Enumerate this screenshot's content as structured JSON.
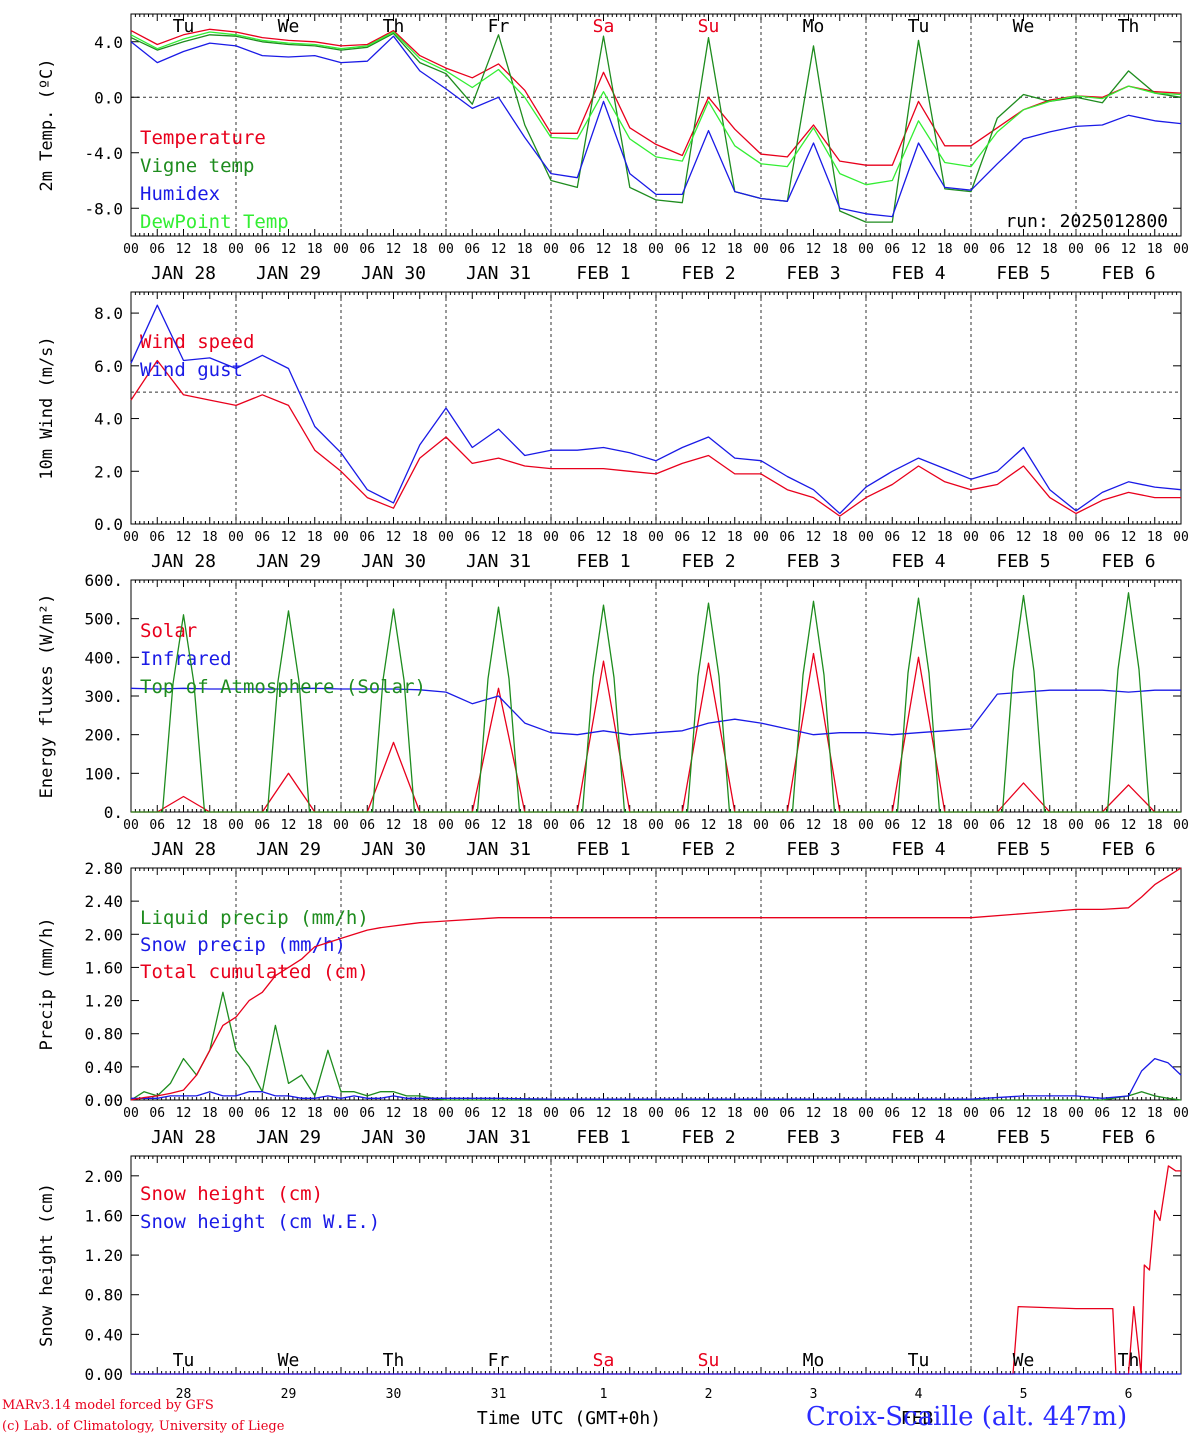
{
  "run_label": "run: 2025012800",
  "day_names": [
    "Tu",
    "We",
    "Th",
    "Fr",
    "Sa",
    "Su",
    "Mo",
    "Tu",
    "We",
    "Th"
  ],
  "weekend_color": "#e8001c",
  "weekend_days": [
    "Sa",
    "Su"
  ],
  "date_labels": [
    "JAN 28",
    "JAN 29",
    "JAN 30",
    "JAN 31",
    "FEB  1",
    "FEB  2",
    "FEB  3",
    "FEB  4",
    "FEB  5",
    "FEB  6"
  ],
  "day_numbers": [
    "28",
    "29",
    "30",
    "31",
    "1",
    "2",
    "3",
    "4",
    "5",
    "6"
  ],
  "hour_labels": [
    "00",
    "06",
    "12",
    "18"
  ],
  "last_tick_label": "00",
  "x_label": "Time UTC (GMT+0h)",
  "x_month_label": "FEB",
  "footer": {
    "credit_line1": "MARv3.14 model forced by GFS",
    "credit_line2": "(c) Lab. of Climatology, University of Liege",
    "station": "Croix-Scaille (alt. 447m)"
  },
  "chart_data": [
    {
      "id": "temp",
      "type": "line",
      "ylabel": "2m Temp. (ºC)",
      "ylim": [
        -10.0,
        6.0
      ],
      "yticks": [
        -8,
        -4,
        0,
        4
      ],
      "ytick_labels": [
        "-8.0",
        "-4.0",
        "0.0",
        "4.0"
      ],
      "ref_line": 0.0,
      "x_days": [
        0,
        0.25,
        0.5,
        0.75,
        1,
        1.25,
        1.5,
        1.75,
        2,
        2.25,
        2.5,
        2.75,
        3,
        3.25,
        3.5,
        3.75,
        4,
        4.25,
        4.5,
        4.75,
        5,
        5.25,
        5.5,
        5.75,
        6,
        6.25,
        6.5,
        6.75,
        7,
        7.25,
        7.5,
        7.75,
        8,
        8.25,
        8.5,
        8.75,
        9,
        9.25,
        9.5,
        9.75,
        10
      ],
      "series": [
        {
          "name": "Temperature",
          "color": "#e8001c",
          "values": [
            4.8,
            3.8,
            4.5,
            4.9,
            4.7,
            4.3,
            4.1,
            4.0,
            3.7,
            3.8,
            4.8,
            3.0,
            2.1,
            1.4,
            2.4,
            0.5,
            -2.6,
            -2.6,
            1.8,
            -2.2,
            -3.4,
            -4.2,
            0.0,
            -2.3,
            -4.1,
            -4.3,
            -2.0,
            -4.6,
            -4.9,
            -4.9,
            -0.3,
            -3.5,
            -3.5,
            -2.2,
            -0.9,
            -0.2,
            0.1,
            0.0,
            0.8,
            0.4,
            0.3
          ]
        },
        {
          "name": "Vigne temp",
          "color": "#1e8c1e",
          "values": [
            4.3,
            3.4,
            4.0,
            4.5,
            4.4,
            4.0,
            3.8,
            3.7,
            3.4,
            3.6,
            4.6,
            2.5,
            1.7,
            -0.5,
            4.5,
            -2.0,
            -6.0,
            -6.5,
            4.4,
            -6.5,
            -7.4,
            -7.6,
            4.3,
            -6.8,
            -7.3,
            -7.5,
            3.7,
            -8.2,
            -9.0,
            -9.0,
            4.1,
            -6.6,
            -6.8,
            -1.5,
            0.2,
            -0.3,
            0.0,
            -0.4,
            1.9,
            0.3,
            0.0
          ]
        },
        {
          "name": "Humidex",
          "color": "#1a1ae6",
          "values": [
            4.0,
            2.5,
            3.3,
            3.9,
            3.7,
            3.0,
            2.9,
            3.0,
            2.5,
            2.6,
            4.4,
            1.9,
            0.6,
            -0.8,
            0.0,
            -2.9,
            -5.5,
            -5.8,
            -0.3,
            -5.5,
            -7.0,
            -7.0,
            -2.4,
            -6.8,
            -7.3,
            -7.5,
            -3.3,
            -8.0,
            -8.4,
            -8.6,
            -3.3,
            -6.5,
            -6.7,
            -4.8,
            -3.0,
            -2.5,
            -2.1,
            -2.0,
            -1.3,
            -1.7,
            -1.9
          ]
        },
        {
          "name": "DewPoint Temp",
          "color": "#33ee33",
          "values": [
            4.5,
            3.5,
            4.2,
            4.7,
            4.5,
            4.1,
            3.9,
            3.8,
            3.5,
            3.7,
            4.7,
            2.8,
            1.9,
            0.7,
            2.0,
            0.0,
            -2.9,
            -3.0,
            0.4,
            -3.0,
            -4.3,
            -4.6,
            -0.3,
            -3.5,
            -4.8,
            -5.0,
            -2.2,
            -5.5,
            -6.3,
            -6.0,
            -1.7,
            -4.7,
            -5.0,
            -2.5,
            -0.9,
            -0.3,
            0.1,
            -0.1,
            0.8,
            0.3,
            0.2
          ]
        }
      ]
    },
    {
      "id": "wind",
      "type": "line",
      "ylabel": "10m Wind (m/s)",
      "ylim": [
        0.0,
        8.8
      ],
      "yticks": [
        0,
        2,
        4,
        6,
        8
      ],
      "ytick_labels": [
        "0.0",
        "2.0",
        "4.0",
        "6.0",
        "8.0"
      ],
      "ref_line": 5.0,
      "x_days": [
        0,
        0.25,
        0.5,
        0.75,
        1,
        1.25,
        1.5,
        1.75,
        2,
        2.25,
        2.5,
        2.75,
        3,
        3.25,
        3.5,
        3.75,
        4,
        4.25,
        4.5,
        4.75,
        5,
        5.25,
        5.5,
        5.75,
        6,
        6.25,
        6.5,
        6.75,
        7,
        7.25,
        7.5,
        7.75,
        8,
        8.25,
        8.5,
        8.75,
        9,
        9.25,
        9.5,
        9.75,
        10
      ],
      "series": [
        {
          "name": "Wind speed",
          "color": "#e8001c",
          "values": [
            4.7,
            6.2,
            4.9,
            4.7,
            4.5,
            4.9,
            4.5,
            2.8,
            2.0,
            1.0,
            0.6,
            2.5,
            3.3,
            2.3,
            2.5,
            2.2,
            2.1,
            2.1,
            2.1,
            2.0,
            1.9,
            2.3,
            2.6,
            1.9,
            1.9,
            1.3,
            1.0,
            0.3,
            1.0,
            1.5,
            2.2,
            1.6,
            1.3,
            1.5,
            2.2,
            1.0,
            0.4,
            0.9,
            1.2,
            1.0,
            1.0
          ]
        },
        {
          "name": "Wind gust",
          "color": "#1a1ae6",
          "values": [
            6.1,
            8.3,
            6.2,
            6.3,
            5.9,
            6.4,
            5.9,
            3.7,
            2.7,
            1.3,
            0.8,
            3.0,
            4.4,
            2.9,
            3.6,
            2.6,
            2.8,
            2.8,
            2.9,
            2.7,
            2.4,
            2.9,
            3.3,
            2.5,
            2.4,
            1.8,
            1.3,
            0.4,
            1.4,
            2.0,
            2.5,
            2.1,
            1.7,
            2.0,
            2.9,
            1.3,
            0.5,
            1.2,
            1.6,
            1.4,
            1.3
          ]
        }
      ]
    },
    {
      "id": "energy",
      "type": "line",
      "ylabel": "Energy fluxes (W/m²)",
      "ylim": [
        0,
        600
      ],
      "yticks": [
        0,
        100,
        200,
        300,
        400,
        500,
        600
      ],
      "ytick_labels": [
        "0.",
        "100.",
        "200.",
        "300.",
        "400.",
        "500.",
        "600."
      ],
      "x_days": [
        0,
        0.25,
        0.5,
        0.75,
        1,
        1.25,
        1.5,
        1.75,
        2,
        2.25,
        2.5,
        2.75,
        3,
        3.25,
        3.5,
        3.75,
        4,
        4.25,
        4.5,
        4.75,
        5,
        5.25,
        5.5,
        5.75,
        6,
        6.25,
        6.5,
        6.75,
        7,
        7.25,
        7.5,
        7.75,
        8,
        8.25,
        8.5,
        8.75,
        9,
        9.25,
        9.5,
        9.75,
        10
      ],
      "series": [
        {
          "name": "Solar",
          "color": "#e8001c",
          "values": [
            0,
            0,
            40,
            0,
            0,
            0,
            100,
            0,
            0,
            0,
            180,
            0,
            0,
            0,
            320,
            0,
            0,
            0,
            390,
            0,
            0,
            0,
            385,
            0,
            0,
            0,
            410,
            0,
            0,
            0,
            400,
            0,
            0,
            0,
            75,
            0,
            0,
            0,
            70,
            0,
            0
          ]
        },
        {
          "name": "Infrared",
          "color": "#1a1ae6",
          "values": [
            320,
            318,
            320,
            318,
            318,
            318,
            318,
            320,
            318,
            318,
            318,
            316,
            310,
            280,
            300,
            230,
            205,
            200,
            210,
            200,
            205,
            210,
            230,
            240,
            230,
            215,
            200,
            205,
            205,
            200,
            205,
            210,
            215,
            305,
            310,
            315,
            315,
            315,
            310,
            315,
            315
          ]
        },
        {
          "name": "Top of Atmosphere (Solar)",
          "color": "#1e8c1e",
          "solar_peaks": [
            510,
            520,
            525,
            530,
            535,
            540,
            545,
            553,
            560,
            567
          ]
        }
      ]
    },
    {
      "id": "precip",
      "type": "line",
      "ylabel": "Precip (mm/h)",
      "ylim": [
        0,
        2.8
      ],
      "yticks": [
        0,
        0.4,
        0.8,
        1.2,
        1.6,
        2.0,
        2.4,
        2.8
      ],
      "ytick_labels": [
        "0.00",
        "0.40",
        "0.80",
        "1.20",
        "1.60",
        "2.00",
        "2.40",
        "2.80"
      ],
      "x_days": [
        0,
        0.125,
        0.25,
        0.375,
        0.5,
        0.625,
        0.75,
        0.875,
        1,
        1.125,
        1.25,
        1.375,
        1.5,
        1.625,
        1.75,
        1.875,
        2,
        2.125,
        2.25,
        2.375,
        2.5,
        2.625,
        2.75,
        2.875,
        3,
        3.5,
        4,
        4.5,
        5,
        5.5,
        6,
        6.5,
        7,
        7.5,
        8,
        8.5,
        9,
        9.25,
        9.5,
        9.625,
        9.75,
        9.875,
        10
      ],
      "series": [
        {
          "name": "Liquid precip (mm/h)",
          "color": "#1e8c1e",
          "values": [
            0,
            0.1,
            0.05,
            0.2,
            0.5,
            0.3,
            0.6,
            1.3,
            0.6,
            0.4,
            0.1,
            0.9,
            0.2,
            0.3,
            0.05,
            0.6,
            0.1,
            0.1,
            0.05,
            0.1,
            0.1,
            0.05,
            0.05,
            0.02,
            0,
            0,
            0,
            0,
            0,
            0,
            0,
            0,
            0,
            0,
            0,
            0,
            0,
            0,
            0.05,
            0.1,
            0.05,
            0.02,
            0
          ]
        },
        {
          "name": "Snow precip (mm/h)",
          "color": "#1a1ae6",
          "values": [
            0.02,
            0.02,
            0.02,
            0.05,
            0.05,
            0.05,
            0.1,
            0.05,
            0.05,
            0.1,
            0.1,
            0.05,
            0.05,
            0.02,
            0.02,
            0.05,
            0.02,
            0.05,
            0.02,
            0.02,
            0.05,
            0.02,
            0.02,
            0.02,
            0.02,
            0.02,
            0.01,
            0.01,
            0.01,
            0.01,
            0.01,
            0.01,
            0.01,
            0.01,
            0.01,
            0.05,
            0.05,
            0.02,
            0.05,
            0.35,
            0.5,
            0.45,
            0.3
          ]
        },
        {
          "name": "Total cumulated (cm)",
          "color": "#e8001c",
          "values": [
            0,
            0.03,
            0.05,
            0.08,
            0.12,
            0.3,
            0.6,
            0.9,
            1.0,
            1.2,
            1.3,
            1.5,
            1.6,
            1.7,
            1.85,
            1.9,
            1.95,
            2.0,
            2.05,
            2.08,
            2.1,
            2.12,
            2.14,
            2.15,
            2.16,
            2.2,
            2.2,
            2.2,
            2.2,
            2.2,
            2.2,
            2.2,
            2.2,
            2.2,
            2.2,
            2.25,
            2.3,
            2.3,
            2.32,
            2.45,
            2.6,
            2.7,
            2.8
          ]
        }
      ]
    },
    {
      "id": "snow",
      "type": "line",
      "ylabel": "Snow height (cm)",
      "ylim": [
        0,
        2.2
      ],
      "yticks": [
        0,
        0.4,
        0.8,
        1.2,
        1.6,
        2.0
      ],
      "ytick_labels": [
        "0.00",
        "0.40",
        "0.80",
        "1.20",
        "1.60",
        "2.00"
      ],
      "x_days": [
        0,
        4,
        8,
        8.4,
        8.45,
        9,
        9.35,
        9.38,
        9.5,
        9.55,
        9.62,
        9.65,
        9.7,
        9.75,
        9.8,
        9.88,
        9.95,
        10
      ],
      "series": [
        {
          "name": "Snow height (cm)",
          "color": "#e8001c",
          "values": [
            0,
            0,
            0,
            0,
            0.68,
            0.66,
            0.66,
            0,
            0,
            0.68,
            0,
            1.1,
            1.05,
            1.65,
            1.55,
            2.1,
            2.05,
            2.05
          ]
        },
        {
          "name": "Snow height (cm W.E.)",
          "color": "#1a1ae6",
          "values": [
            0,
            0,
            0,
            0,
            0,
            0,
            0,
            0,
            0,
            0,
            0,
            0,
            0,
            0,
            0,
            0,
            0,
            0
          ]
        }
      ]
    }
  ]
}
